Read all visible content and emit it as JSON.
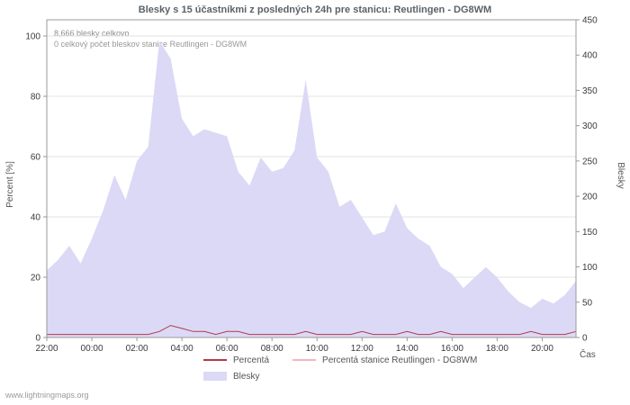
{
  "page": {
    "watermark": "www.lightningmaps.org"
  },
  "chart_data": {
    "type": "area",
    "title": "Blesky s 15 účastníkmi z posledných 24h pre stanicu: Reutlingen - DG8WM",
    "annotations": [
      "8,666 blesky celkovo",
      "0 celkový počet bleskov stanice Reutlingen - DG8WM"
    ],
    "xlabel": "Čas",
    "ylabel_left": "Percent  [%]",
    "ylabel_right": "Blesky",
    "ylim_left": [
      0,
      100
    ],
    "ylim_right": [
      0,
      450
    ],
    "y_left_ticks": [
      0,
      20,
      40,
      60,
      80,
      100
    ],
    "y_right_ticks": [
      0,
      50,
      100,
      150,
      200,
      250,
      300,
      350,
      400,
      450
    ],
    "x_tick_labels": [
      "22:00",
      "00:00",
      "02:00",
      "04:00",
      "06:00",
      "08:00",
      "10:00",
      "12:00",
      "14:00",
      "16:00",
      "18:00",
      "20:00"
    ],
    "grid": true,
    "legend_position": "bottom",
    "x": [
      "22:00",
      "22:30",
      "23:00",
      "23:30",
      "00:00",
      "00:30",
      "01:00",
      "01:30",
      "02:00",
      "02:30",
      "03:00",
      "03:30",
      "04:00",
      "04:30",
      "05:00",
      "05:30",
      "06:00",
      "06:30",
      "07:00",
      "07:30",
      "08:00",
      "08:30",
      "09:00",
      "09:30",
      "10:00",
      "10:30",
      "11:00",
      "11:30",
      "12:00",
      "12:30",
      "13:00",
      "13:30",
      "14:00",
      "14:30",
      "15:00",
      "15:30",
      "16:00",
      "16:30",
      "17:00",
      "17:30",
      "18:00",
      "18:30",
      "19:00",
      "19:30",
      "20:00",
      "20:30",
      "21:00",
      "21:30"
    ],
    "series": [
      {
        "name": "Blesky",
        "type": "area",
        "axis": "right",
        "color": "#dcd9f6",
        "values": [
          95,
          110,
          130,
          105,
          140,
          180,
          230,
          195,
          250,
          270,
          420,
          395,
          310,
          285,
          295,
          290,
          285,
          235,
          215,
          255,
          235,
          240,
          265,
          365,
          255,
          235,
          185,
          195,
          170,
          145,
          150,
          190,
          155,
          140,
          130,
          100,
          90,
          70,
          85,
          100,
          85,
          65,
          50,
          42,
          55,
          48,
          60,
          80
        ]
      },
      {
        "name": "Percentá",
        "type": "line",
        "axis": "left",
        "color": "#b23a48",
        "values": [
          1,
          1,
          1,
          1,
          1,
          1,
          1,
          1,
          1,
          1,
          2,
          4,
          3,
          2,
          2,
          1,
          2,
          2,
          1,
          1,
          1,
          1,
          1,
          2,
          1,
          1,
          1,
          1,
          2,
          1,
          1,
          1,
          2,
          1,
          1,
          2,
          1,
          1,
          1,
          1,
          1,
          1,
          1,
          2,
          1,
          1,
          1,
          2
        ]
      },
      {
        "name": "Percentá stanice Reutlingen - DG8WM",
        "type": "line",
        "axis": "left",
        "color": "#f5b6c2",
        "values": [
          0,
          0,
          0,
          0,
          0,
          0,
          0,
          0,
          0,
          0,
          0,
          0,
          0,
          0,
          0,
          0,
          0,
          0,
          0,
          0,
          0,
          0,
          0,
          0,
          0,
          0,
          0,
          0,
          0,
          0,
          0,
          0,
          0,
          0,
          0,
          0,
          0,
          0,
          0,
          0,
          0,
          0,
          0,
          0,
          0,
          0,
          0,
          0
        ]
      }
    ],
    "legend": [
      "Percentá",
      "Percentá stanice Reutlingen - DG8WM",
      "Blesky"
    ]
  },
  "colors": {
    "area_fill": "#dcd9f6",
    "percent_line": "#b23a48",
    "station_line": "#f5b6c2",
    "grid": "#e3e3e3",
    "axis": "#999999",
    "title_text": "#5a6269",
    "annotation_text": "#8d8d8d"
  }
}
